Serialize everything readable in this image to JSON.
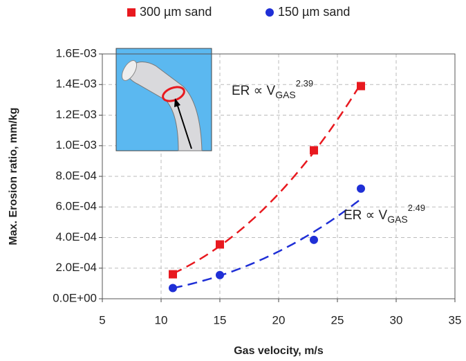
{
  "chart_data": {
    "type": "scatter",
    "xlabel": "Gas velocity, m/s",
    "ylabel": "Max. Erosion ratio, mm/kg",
    "xlim": [
      5,
      35
    ],
    "xticks": [
      5,
      10,
      15,
      20,
      25,
      30,
      35
    ],
    "ylim": [
      0,
      0.0016
    ],
    "yticks": [
      {
        "value": 0,
        "label": "0.0E+00"
      },
      {
        "value": 0.0002,
        "label": "2.0E-04"
      },
      {
        "value": 0.0004,
        "label": "4.0E-04"
      },
      {
        "value": 0.0006,
        "label": "6.0E-04"
      },
      {
        "value": 0.0008,
        "label": "8.0E-04"
      },
      {
        "value": 0.001,
        "label": "1.0E-03"
      },
      {
        "value": 0.0012,
        "label": "1.2E-03"
      },
      {
        "value": 0.0014,
        "label": "1.4E-03"
      },
      {
        "value": 0.0016,
        "label": "1.6E-03"
      }
    ],
    "grid": true,
    "series": [
      {
        "name": "300 µm sand",
        "color": "#e8191f",
        "marker": "square",
        "x": [
          11,
          15,
          23,
          27
        ],
        "values": [
          0.00016,
          0.000355,
          0.00097,
          0.00139
        ]
      },
      {
        "name": "150 µm sand",
        "color": "#1f2fd6",
        "marker": "circle",
        "x": [
          11,
          15,
          23,
          27
        ],
        "values": [
          7e-05,
          0.000155,
          0.000385,
          0.00072
        ]
      }
    ],
    "annotations": [
      {
        "text": "ER ∝ V",
        "subscript": "GAS",
        "exponent": 2.39
      },
      {
        "text": "ER ∝ V",
        "subscript": "GAS",
        "exponent": 2.49
      }
    ]
  }
}
